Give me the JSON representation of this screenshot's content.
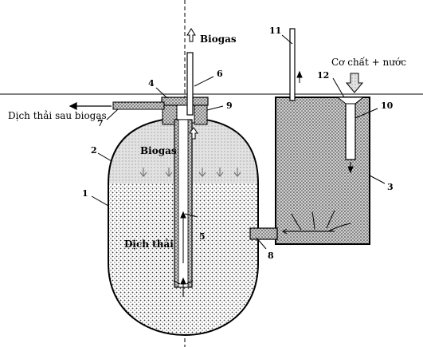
{
  "labels": {
    "biogas_top": "Biogas",
    "biogas_inside": "Biogas",
    "slurry": "Dịch thải",
    "effluent": "Dịch thải sau biogas",
    "feed": "Cơ chất + nước"
  },
  "numbers": {
    "n1": "1",
    "n2": "2",
    "n3": "3",
    "n4": "4",
    "n5": "5",
    "n6": "6",
    "n7": "7",
    "n8": "8",
    "n9": "9",
    "n10": "10",
    "n11": "11",
    "n12": "12"
  }
}
